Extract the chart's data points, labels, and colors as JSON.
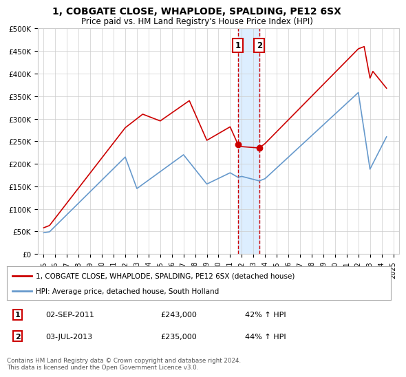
{
  "title": "1, COBGATE CLOSE, WHAPLODE, SPALDING, PE12 6SX",
  "subtitle": "Price paid vs. HM Land Registry's House Price Index (HPI)",
  "legend_line1": "1, COBGATE CLOSE, WHAPLODE, SPALDING, PE12 6SX (detached house)",
  "legend_line2": "HPI: Average price, detached house, South Holland",
  "annotation_text": "Contains HM Land Registry data © Crown copyright and database right 2024.\nThis data is licensed under the Open Government Licence v3.0.",
  "sale1_date": "02-SEP-2011",
  "sale1_price": "£243,000",
  "sale1_hpi": "42% ↑ HPI",
  "sale2_date": "03-JUL-2013",
  "sale2_price": "£235,000",
  "sale2_hpi": "44% ↑ HPI",
  "sale1_x": 2011.67,
  "sale2_x": 2013.5,
  "sale1_marker_y": 243000,
  "sale2_marker_y": 235000,
  "ylim": [
    0,
    500000
  ],
  "xlim": [
    1994.5,
    2025.5
  ],
  "ytick_labels": [
    "£0",
    "£50K",
    "£100K",
    "£150K",
    "£200K",
    "£250K",
    "£300K",
    "£350K",
    "£400K",
    "£450K",
    "£500K"
  ],
  "ytick_values": [
    0,
    50000,
    100000,
    150000,
    200000,
    250000,
    300000,
    350000,
    400000,
    450000,
    500000
  ],
  "xtick_values": [
    1995,
    1996,
    1997,
    1998,
    1999,
    2000,
    2001,
    2002,
    2003,
    2004,
    2005,
    2006,
    2007,
    2008,
    2009,
    2010,
    2011,
    2012,
    2013,
    2014,
    2015,
    2016,
    2017,
    2018,
    2019,
    2020,
    2021,
    2022,
    2023,
    2024,
    2025
  ],
  "red_color": "#cc0000",
  "blue_color": "#6699cc",
  "shade_color": "#ddeeff",
  "grid_color": "#cccccc",
  "bg_color": "#ffffff"
}
